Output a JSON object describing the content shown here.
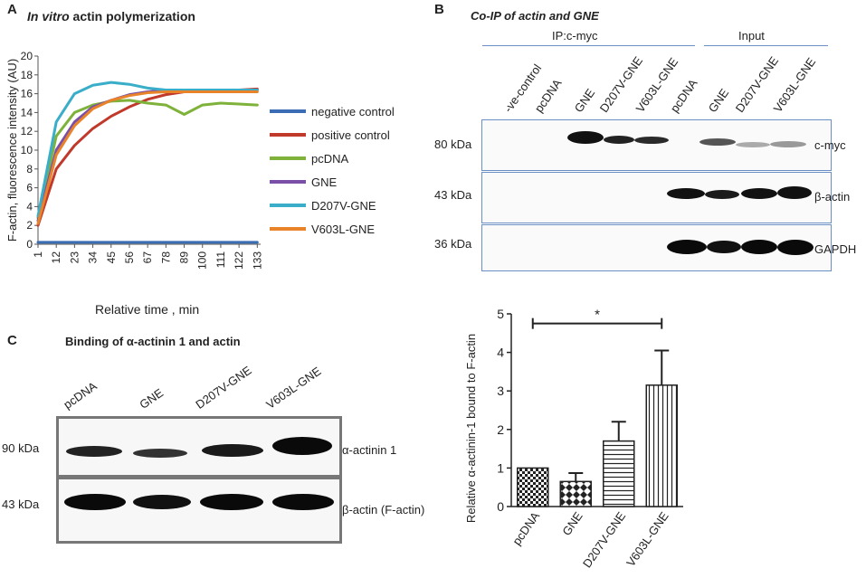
{
  "panel_a": {
    "letter": "A",
    "title_italic": "In vitro",
    "title_rest": " actin polymerization",
    "ylabel": "F-actin, fluorescence intensity (AU)",
    "xlabel": "Relative time , min"
  },
  "panel_b": {
    "letter": "B",
    "title": "Co-IP of actin and GNE",
    "group_ip": "IP:c-myc",
    "group_input": "Input",
    "lanes": [
      "-ve-control",
      "pcDNA",
      "GNE",
      "D207V-GNE",
      "V603L-GNE",
      "pcDNA",
      "GNE",
      "D207V-GNE",
      "V603L-GNE"
    ],
    "blots": [
      {
        "kda": "80 kDa",
        "protein": "c-myc"
      },
      {
        "kda": "43 kDa",
        "protein": "β-actin"
      },
      {
        "kda": "36 kDa",
        "protein": "GAPDH"
      }
    ]
  },
  "panel_c": {
    "letter": "C",
    "title": "Binding of α-actinin 1 and actin",
    "lanes": [
      "pcDNA",
      "GNE",
      "D207V-GNE",
      "V603L-GNE"
    ],
    "blots": [
      {
        "kda": "90 kDa",
        "protein": "α-actinin 1"
      },
      {
        "kda": "43 kDa",
        "protein": "β-actin (F-actin)"
      }
    ]
  },
  "chart_data": [
    {
      "type": "line",
      "title": "In vitro actin polymerization",
      "xlabel": "Relative time , min",
      "ylabel": "F-actin, fluorescence intensity (AU)",
      "x_ticks": [
        "1",
        "12",
        "23",
        "34",
        "45",
        "56",
        "67",
        "78",
        "89",
        "100",
        "111",
        "122",
        "133"
      ],
      "y_ticks": [
        "0",
        "2",
        "4",
        "6",
        "8",
        "10",
        "12",
        "14",
        "16",
        "18",
        "20"
      ],
      "ylim": [
        0,
        20
      ],
      "xlim": [
        1,
        135
      ],
      "x": [
        1,
        12,
        23,
        34,
        45,
        56,
        67,
        78,
        89,
        100,
        111,
        122,
        133
      ],
      "legend_position": "right",
      "series": [
        {
          "name": "negative control",
          "color": "#3a6db4",
          "values": [
            0.2,
            0.2,
            0.2,
            0.2,
            0.2,
            0.2,
            0.2,
            0.2,
            0.2,
            0.2,
            0.2,
            0.2,
            0.2
          ]
        },
        {
          "name": "positive control",
          "color": "#c0392b",
          "values": [
            2.0,
            8.0,
            10.5,
            12.3,
            13.6,
            14.6,
            15.4,
            15.9,
            16.2,
            16.3,
            16.3,
            16.4,
            16.5
          ]
        },
        {
          "name": "pcDNA",
          "color": "#7fb23a",
          "values": [
            2.8,
            11.5,
            14.0,
            14.8,
            15.2,
            15.3,
            15.0,
            14.8,
            13.8,
            14.8,
            15.0,
            14.9,
            14.8
          ]
        },
        {
          "name": "GNE",
          "color": "#7a4fa8",
          "values": [
            2.5,
            10.0,
            13.0,
            14.6,
            15.3,
            15.9,
            16.2,
            16.4,
            16.4,
            16.4,
            16.4,
            16.4,
            16.4
          ]
        },
        {
          "name": "D207V-GNE",
          "color": "#3aaec8",
          "values": [
            3.0,
            13.0,
            16.0,
            16.9,
            17.2,
            17.0,
            16.6,
            16.4,
            16.4,
            16.4,
            16.4,
            16.4,
            16.4
          ]
        },
        {
          "name": "V603L-GNE",
          "color": "#e9832a",
          "values": [
            2.2,
            9.5,
            12.6,
            14.4,
            15.3,
            15.8,
            16.1,
            16.2,
            16.2,
            16.2,
            16.2,
            16.2,
            16.2
          ]
        }
      ]
    },
    {
      "type": "bar",
      "categories": [
        "pcDNA",
        "GNE",
        "D207V-GNE",
        "V603L-GNE"
      ],
      "values": [
        1.0,
        0.65,
        1.7,
        3.15
      ],
      "errors": [
        0.0,
        0.22,
        0.5,
        0.9
      ],
      "ylabel": "Relative α-actinin-1 bound to F-actin",
      "ylim": [
        0,
        5
      ],
      "y_ticks": [
        "0",
        "1",
        "2",
        "3",
        "4",
        "5"
      ],
      "patterns": [
        "checker",
        "diamond",
        "horizontal",
        "vertical"
      ],
      "significance": {
        "from": "pcDNA",
        "to": "V603L-GNE",
        "label": "*"
      }
    }
  ]
}
